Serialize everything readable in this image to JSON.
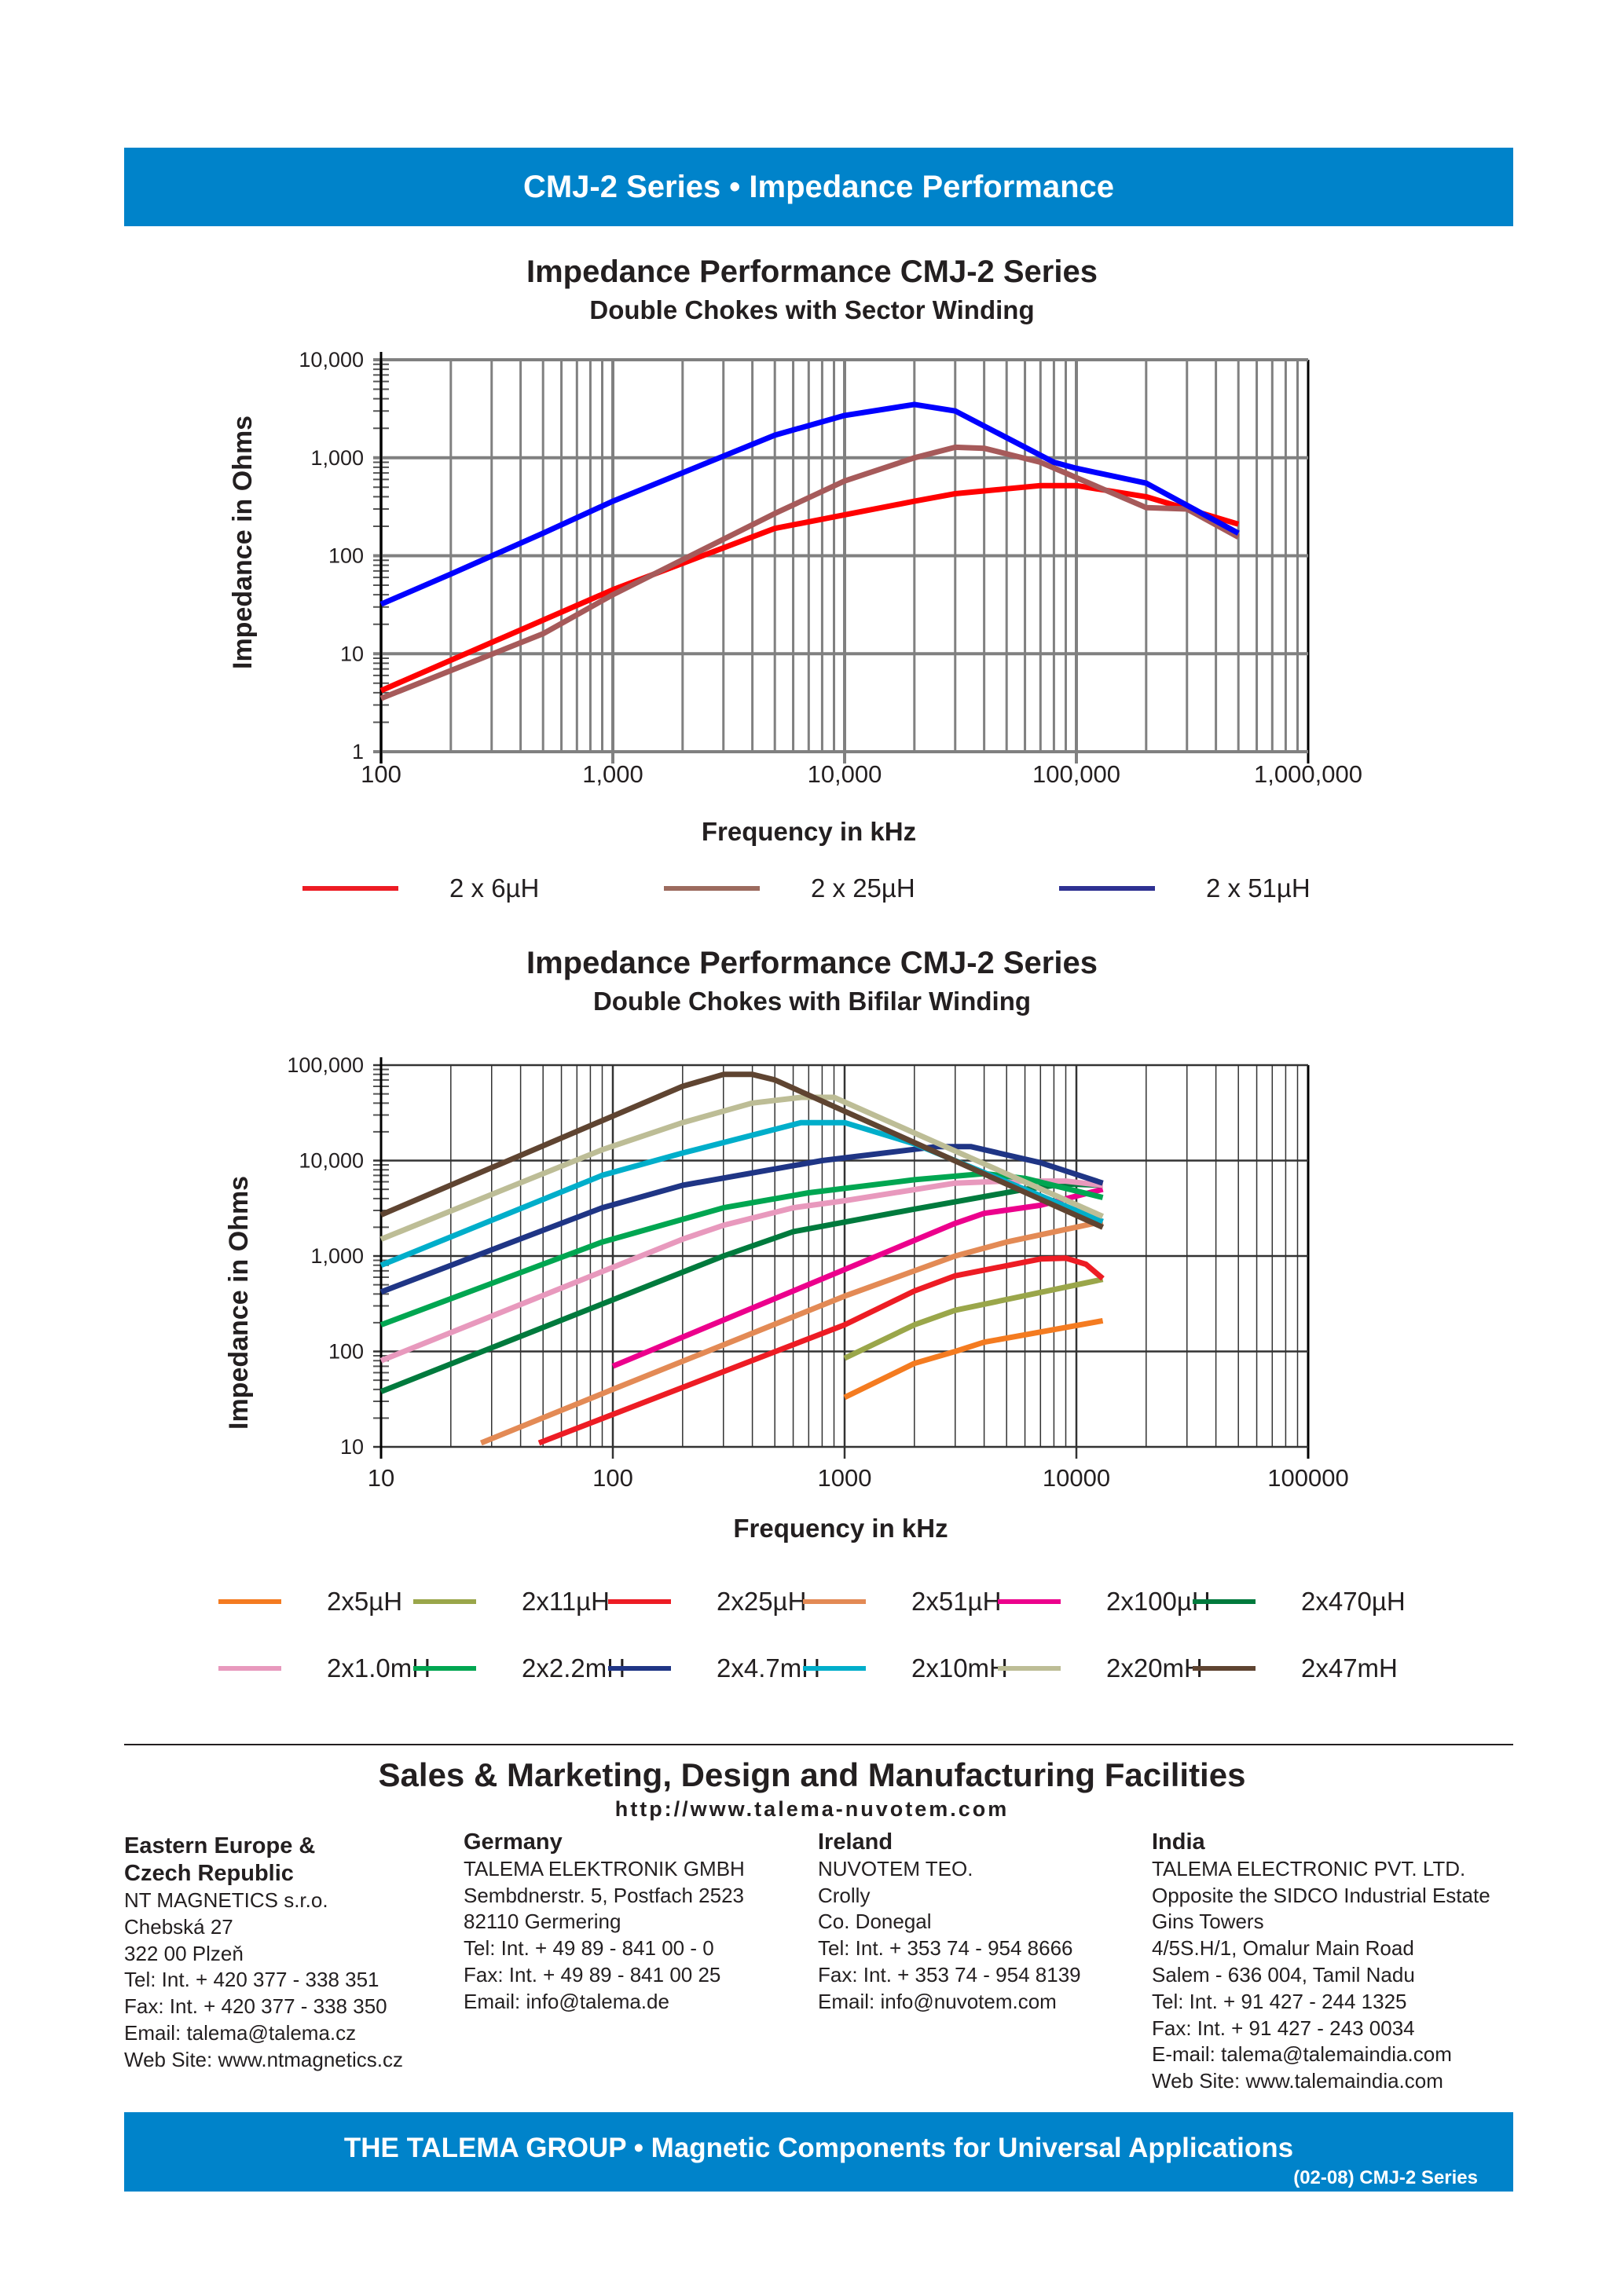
{
  "header": {
    "title": "CMJ-2 Series • Impedance Performance"
  },
  "chart_data": [
    {
      "type": "line",
      "title": "Impedance Performance CMJ-2 Series",
      "subtitle": "Double Chokes with Sector Winding",
      "xlabel": "Frequency in kHz",
      "ylabel": "Impedance in Ohms",
      "x_scale": "log",
      "y_scale": "log",
      "xlim": [
        100,
        1000000
      ],
      "ylim": [
        1,
        10000
      ],
      "grid": true,
      "legend_position": "bottom",
      "x_ticks": [
        "100",
        "1,000",
        "10,000",
        "100,000",
        "1,000,000"
      ],
      "y_ticks": [
        "1",
        "10",
        "100",
        "1,000",
        "10,000"
      ],
      "series": [
        {
          "name": "2 x 6µH",
          "color": "#ff0000",
          "legend_color": "#ed1c24",
          "points": [
            [
              100,
              4.2
            ],
            [
              1000,
              45
            ],
            [
              5000,
              190
            ],
            [
              20000,
              360
            ],
            [
              30000,
              430
            ],
            [
              70000,
              520
            ],
            [
              100000,
              520
            ],
            [
              200000,
              400
            ],
            [
              500000,
              210
            ]
          ]
        },
        {
          "name": "2 x 25µH",
          "color": "#a65a5a",
          "legend_color": "#9c6b5e",
          "points": [
            [
              100,
              3.5
            ],
            [
              500,
              16
            ],
            [
              1000,
              40
            ],
            [
              5000,
              270
            ],
            [
              10000,
              580
            ],
            [
              20000,
              1000
            ],
            [
              30000,
              1280
            ],
            [
              40000,
              1250
            ],
            [
              70000,
              900
            ],
            [
              200000,
              310
            ],
            [
              300000,
              300
            ],
            [
              500000,
              155
            ]
          ]
        },
        {
          "name": "2 x 51µH",
          "color": "#0000ff",
          "legend_color": "#2e3192",
          "points": [
            [
              100,
              32
            ],
            [
              200,
              65
            ],
            [
              500,
              170
            ],
            [
              1000,
              360
            ],
            [
              5000,
              1700
            ],
            [
              10000,
              2700
            ],
            [
              20000,
              3500
            ],
            [
              30000,
              3000
            ],
            [
              80000,
              900
            ],
            [
              100000,
              780
            ],
            [
              200000,
              550
            ],
            [
              500000,
              170
            ]
          ]
        }
      ]
    },
    {
      "type": "line",
      "title": "Impedance Performance CMJ-2 Series",
      "subtitle": "Double Chokes with Bifilar Winding",
      "xlabel": "Frequency in kHz",
      "ylabel": "Impedance in Ohms",
      "x_scale": "log",
      "y_scale": "log",
      "xlim": [
        10,
        100000
      ],
      "ylim": [
        10,
        100000
      ],
      "grid": true,
      "legend_position": "bottom",
      "x_ticks": [
        "10",
        "100",
        "1000",
        "10000",
        "100000"
      ],
      "y_ticks": [
        "10",
        "100",
        "1,000",
        "10,000",
        "100,000"
      ],
      "series": [
        {
          "name": "2x5µH",
          "color": "#f47b20",
          "points": [
            [
              1000,
              33
            ],
            [
              2000,
              75
            ],
            [
              3000,
              100
            ],
            [
              4000,
              125
            ],
            [
              13000,
              210
            ]
          ]
        },
        {
          "name": "2x11µH",
          "color": "#9aa64a",
          "points": [
            [
              1000,
              85
            ],
            [
              2000,
              190
            ],
            [
              3000,
              270
            ],
            [
              13000,
              570
            ]
          ]
        },
        {
          "name": "2x25µH",
          "color": "#ed1c24",
          "points": [
            [
              48,
              11
            ],
            [
              1000,
              190
            ],
            [
              2000,
              430
            ],
            [
              3000,
              620
            ],
            [
              7000,
              930
            ],
            [
              9000,
              950
            ],
            [
              11000,
              820
            ],
            [
              13000,
              580
            ]
          ]
        },
        {
          "name": "2x51µH",
          "color": "#e38a55",
          "points": [
            [
              27,
              11
            ],
            [
              100,
              40
            ],
            [
              1000,
              380
            ],
            [
              3000,
              1000
            ],
            [
              5000,
              1400
            ],
            [
              13000,
              2300
            ]
          ]
        },
        {
          "name": "2x100µH",
          "color": "#ec008c",
          "points": [
            [
              100,
              70
            ],
            [
              600,
              430
            ],
            [
              3000,
              2200
            ],
            [
              4000,
              2800
            ],
            [
              7000,
              3400
            ],
            [
              13000,
              5000
            ]
          ]
        },
        {
          "name": "2x470µH",
          "color": "#007a3d",
          "points": [
            [
              10,
              38
            ],
            [
              300,
              1000
            ],
            [
              600,
              1800
            ],
            [
              2000,
              3100
            ],
            [
              6000,
              5000
            ],
            [
              9000,
              5700
            ],
            [
              13000,
              5500
            ]
          ]
        },
        {
          "name": "2x1.0mH",
          "color": "#e899bd",
          "points": [
            [
              10,
              80
            ],
            [
              200,
              1500
            ],
            [
              300,
              2100
            ],
            [
              600,
              3200
            ],
            [
              1000,
              3800
            ],
            [
              3000,
              5800
            ],
            [
              5000,
              6100
            ],
            [
              9000,
              6100
            ],
            [
              13000,
              5500
            ]
          ]
        },
        {
          "name": "2x2.2mH",
          "color": "#00a651",
          "points": [
            [
              10,
              190
            ],
            [
              90,
              1400
            ],
            [
              300,
              3200
            ],
            [
              700,
              4600
            ],
            [
              2000,
              6300
            ],
            [
              4000,
              7300
            ],
            [
              6000,
              6500
            ],
            [
              13000,
              4100
            ]
          ]
        },
        {
          "name": "2x4.7mH",
          "color": "#1f3585",
          "points": [
            [
              10,
              420
            ],
            [
              90,
              3200
            ],
            [
              200,
              5500
            ],
            [
              800,
              10000
            ],
            [
              2500,
              14000
            ],
            [
              3500,
              14000
            ],
            [
              7000,
              9500
            ],
            [
              13000,
              5800
            ]
          ]
        },
        {
          "name": "2x10mH",
          "color": "#00aeca",
          "points": [
            [
              10,
              800
            ],
            [
              90,
              7000
            ],
            [
              200,
              12000
            ],
            [
              650,
              25000
            ],
            [
              1000,
              25000
            ],
            [
              2000,
              15000
            ],
            [
              13000,
              2300
            ]
          ]
        },
        {
          "name": "2x20mH",
          "color": "#bdbd96",
          "points": [
            [
              10,
              1500
            ],
            [
              90,
              13000
            ],
            [
              200,
              25000
            ],
            [
              400,
              40000
            ],
            [
              650,
              46000
            ],
            [
              900,
              46000
            ],
            [
              13000,
              2600
            ]
          ]
        },
        {
          "name": "2x47mH",
          "color": "#5f4431",
          "points": [
            [
              10,
              2700
            ],
            [
              200,
              60000
            ],
            [
              300,
              80000
            ],
            [
              400,
              80000
            ],
            [
              500,
              70000
            ],
            [
              13000,
              2000
            ]
          ]
        }
      ]
    }
  ],
  "facilities": {
    "title": "Sales & Marketing, Design and Manufacturing Facilities",
    "url": "http://www.talema-nuvotem.com",
    "columns": [
      {
        "heading": [
          "Eastern Europe &",
          "Czech Republic"
        ],
        "lines": [
          "NT MAGNETICS s.r.o.",
          "Chebská 27",
          "322 00 Plzeň",
          "Tel:  Int. + 420 377 - 338 351",
          "Fax: Int. + 420 377 - 338 350",
          "Email: talema@talema.cz",
          "Web  Site:    www.ntmagnetics.cz"
        ]
      },
      {
        "heading": [
          "Germany"
        ],
        "lines": [
          "TALEMA ELEKTRONIK GMBH",
          "Sembdnerstr. 5,  Postfach 2523",
          "82110 Germering",
          "Tel:  Int. + 49 89 - 841 00 - 0",
          "Fax: Int. + 49 89 - 841 00 25",
          "Email: info@talema.de"
        ]
      },
      {
        "heading": [
          "Ireland"
        ],
        "lines": [
          "NUVOTEM TEO.",
          "Crolly",
          "Co. Donegal",
          "Tel:  Int. + 353 74 - 954 8666",
          "Fax: Int. + 353 74 - 954 8139",
          "Email: info@nuvotem.com"
        ]
      },
      {
        "heading": [
          "India"
        ],
        "lines": [
          "TALEMA ELECTRONIC PVT. LTD.",
          "Opposite the SIDCO Industrial Estate",
          "Gins  Towers",
          "4/5S.H/1, Omalur Main Road",
          "Salem - 636 004, Tamil Nadu",
          "Tel:  Int. + 91 427 - 244 1325",
          "Fax: Int. + 91 427 - 243 0034",
          "E-mail: talema@talemaindia.com",
          "Web  Site:    www.talemaindia.com"
        ]
      }
    ]
  },
  "footer": {
    "tagline": "THE TALEMA GROUP  •  Magnetic Components for Universal Applications",
    "code": "(02-08) CMJ-2 Series"
  }
}
